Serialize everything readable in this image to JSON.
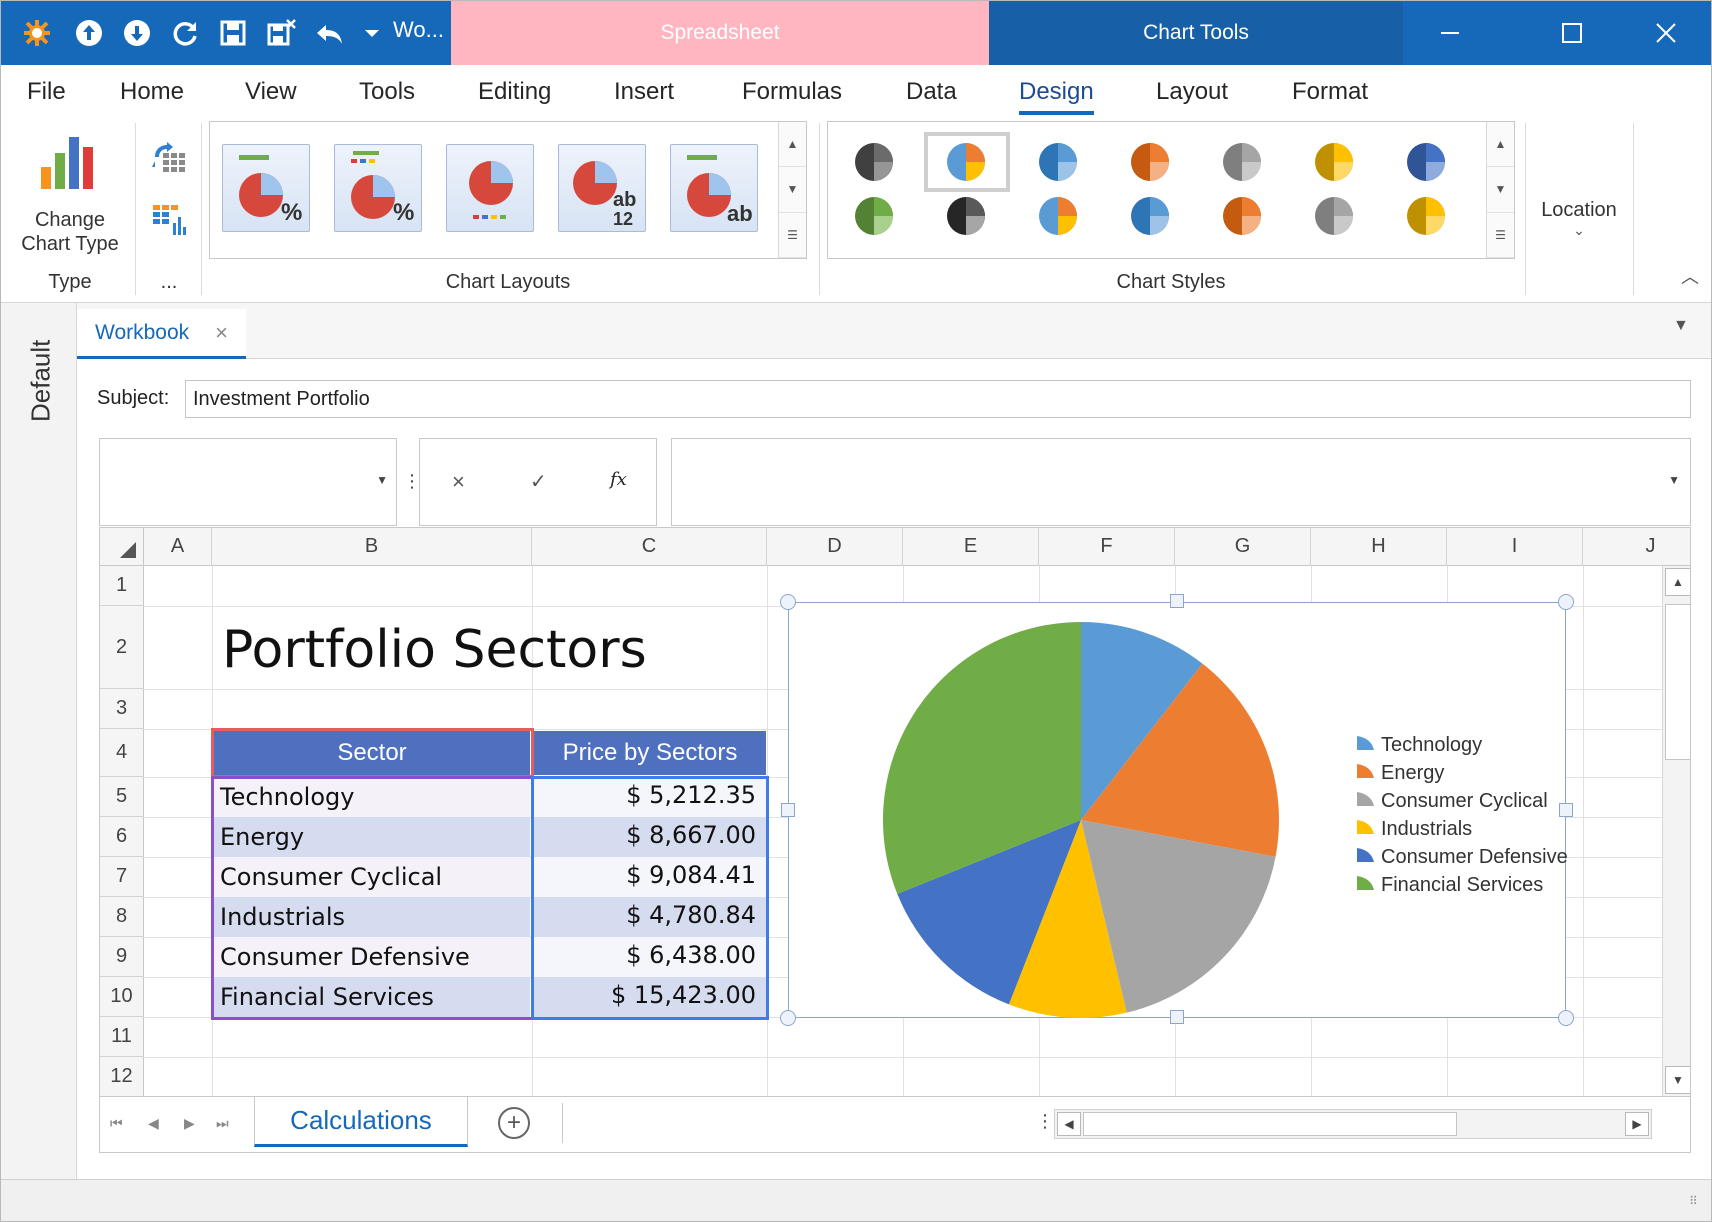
{
  "titlebar": {
    "doc_title": "Wo...",
    "context_tabs": {
      "spreadsheet": "Spreadsheet",
      "chart_tools": "Chart Tools"
    }
  },
  "menu": {
    "tabs": [
      {
        "label": "File"
      },
      {
        "label": "Home"
      },
      {
        "label": "View"
      },
      {
        "label": "Tools"
      },
      {
        "label": "Editing"
      },
      {
        "label": "Insert"
      },
      {
        "label": "Formulas"
      },
      {
        "label": "Data"
      },
      {
        "label": "Design"
      },
      {
        "label": "Layout"
      },
      {
        "label": "Format"
      }
    ],
    "active": "Design"
  },
  "ribbon": {
    "change_chart_type_line1": "Change",
    "change_chart_type_line2": "Chart Type",
    "groups": {
      "type": "Type",
      "data": "...",
      "chart_layouts": "Chart Layouts",
      "chart_styles": "Chart Styles"
    },
    "location": "Location",
    "layout_labels": [
      {
        "sub": "%"
      },
      {
        "sub": "%"
      },
      {
        "sub": ""
      },
      {
        "sub": "ab",
        "sub2": "12"
      },
      {
        "sub": "ab"
      }
    ]
  },
  "dock": {
    "label": "Default"
  },
  "document": {
    "tab_label": "Workbook"
  },
  "subject": {
    "label": "Subject:",
    "value": "Investment Portfolio"
  },
  "formula_bar": {
    "cancel": "×",
    "enter": "✓",
    "fx": "fx"
  },
  "grid": {
    "columns": [
      "A",
      "B",
      "C",
      "D",
      "E",
      "F",
      "G",
      "H",
      "I",
      "J"
    ],
    "rows": [
      "1",
      "2",
      "3",
      "4",
      "5",
      "6",
      "7",
      "8",
      "9",
      "10",
      "11",
      "12"
    ],
    "sheet_title": "Portfolio Sectors",
    "table": {
      "headers": [
        "Sector",
        "Price by Sectors"
      ],
      "rows": [
        {
          "sector": "Technology",
          "price": "$ 5,212.35"
        },
        {
          "sector": "Energy",
          "price": "$ 8,667.00"
        },
        {
          "sector": "Consumer Cyclical",
          "price": "$ 9,084.41"
        },
        {
          "sector": "Industrials",
          "price": "$ 4,780.84"
        },
        {
          "sector": "Consumer Defensive",
          "price": "$ 6,438.00"
        },
        {
          "sector": "Financial Services",
          "price": "$ 15,423.00"
        }
      ]
    }
  },
  "chart_data": {
    "type": "pie",
    "categories": [
      "Technology",
      "Energy",
      "Consumer Cyclical",
      "Industrials",
      "Consumer Defensive",
      "Financial Services"
    ],
    "values": [
      5212.35,
      8667.0,
      9084.41,
      4780.84,
      6438.0,
      15423.0
    ],
    "colors": [
      "#5b9bd5",
      "#ed7d31",
      "#a5a5a5",
      "#ffc000",
      "#4472c4",
      "#70ad47"
    ],
    "legend_position": "right"
  },
  "sheets": {
    "active": "Calculations"
  },
  "colors": {
    "accent": "#1668b8",
    "table_header": "#4f6fbf",
    "band": "#d6dcef"
  }
}
